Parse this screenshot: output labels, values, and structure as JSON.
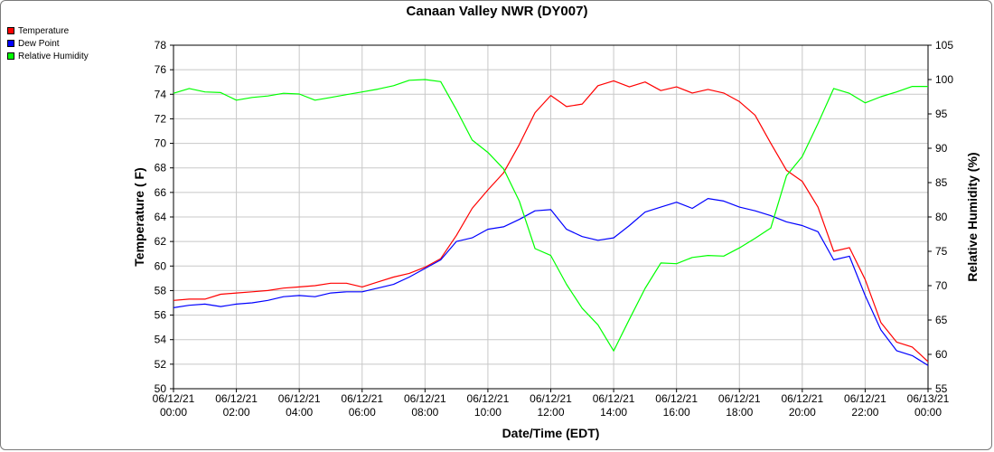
{
  "chart_data": {
    "type": "line",
    "title": "Canaan Valley NWR (DY007)",
    "xlabel": "Date/Time (EDT)",
    "ylabel": "Temperature ( F)",
    "y2label": "Relative Humidity (%)",
    "ylim": [
      50,
      78
    ],
    "y2lim": [
      55,
      105
    ],
    "xlim": [
      "06/12/21 00:00",
      "06/13/21 00:00"
    ],
    "yticks": [
      "50",
      "52",
      "54",
      "56",
      "58",
      "60",
      "62",
      "64",
      "66",
      "68",
      "70",
      "72",
      "74",
      "76",
      "78"
    ],
    "y2ticks": [
      "55",
      "60",
      "65",
      "70",
      "75",
      "80",
      "85",
      "90",
      "95",
      "100",
      "105"
    ],
    "xticks": [
      {
        "date": "06/12/21",
        "time": "00:00"
      },
      {
        "date": "06/12/21",
        "time": "02:00"
      },
      {
        "date": "06/12/21",
        "time": "04:00"
      },
      {
        "date": "06/12/21",
        "time": "06:00"
      },
      {
        "date": "06/12/21",
        "time": "08:00"
      },
      {
        "date": "06/12/21",
        "time": "10:00"
      },
      {
        "date": "06/12/21",
        "time": "12:00"
      },
      {
        "date": "06/12/21",
        "time": "14:00"
      },
      {
        "date": "06/12/21",
        "time": "16:00"
      },
      {
        "date": "06/12/21",
        "time": "18:00"
      },
      {
        "date": "06/12/21",
        "time": "20:00"
      },
      {
        "date": "06/12/21",
        "time": "22:00"
      },
      {
        "date": "06/13/21",
        "time": "00:00"
      }
    ],
    "grid": true,
    "legend_position": "top-left",
    "series": [
      {
        "name": "Temperature",
        "color": "#ff0000",
        "axis": "left",
        "x": [
          "06/12/21 00:00",
          "06/12/21 00:30",
          "06/12/21 01:00",
          "06/12/21 01:30",
          "06/12/21 02:00",
          "06/12/21 02:30",
          "06/12/21 03:00",
          "06/12/21 03:30",
          "06/12/21 04:00",
          "06/12/21 04:30",
          "06/12/21 05:00",
          "06/12/21 05:30",
          "06/12/21 06:00",
          "06/12/21 06:30",
          "06/12/21 07:00",
          "06/12/21 07:30",
          "06/12/21 08:00",
          "06/12/21 08:30",
          "06/12/21 09:00",
          "06/12/21 09:30",
          "06/12/21 10:00",
          "06/12/21 10:30",
          "06/12/21 11:00",
          "06/12/21 11:30",
          "06/12/21 12:00",
          "06/12/21 12:30",
          "06/12/21 13:00",
          "06/12/21 13:30",
          "06/12/21 14:00",
          "06/12/21 14:30",
          "06/12/21 15:00",
          "06/12/21 15:30",
          "06/12/21 16:00",
          "06/12/21 16:30",
          "06/12/21 17:00",
          "06/12/21 17:30",
          "06/12/21 18:00",
          "06/12/21 18:30",
          "06/12/21 19:00",
          "06/12/21 19:30",
          "06/12/21 20:00",
          "06/12/21 20:30",
          "06/12/21 21:00",
          "06/12/21 21:30",
          "06/12/21 22:00",
          "06/12/21 22:30",
          "06/12/21 23:00",
          "06/12/21 23:30",
          "06/13/21 00:00"
        ],
        "values": [
          57.2,
          57.3,
          57.3,
          57.7,
          57.8,
          57.9,
          58.0,
          58.2,
          58.3,
          58.4,
          58.6,
          58.6,
          58.3,
          58.7,
          59.1,
          59.4,
          59.9,
          60.6,
          62.5,
          64.7,
          66.2,
          67.6,
          69.9,
          72.5,
          73.9,
          73.0,
          73.2,
          74.7,
          75.1,
          74.6,
          75.0,
          74.3,
          74.6,
          74.1,
          74.4,
          74.1,
          73.4,
          72.3,
          70.0,
          67.8,
          66.9,
          64.8,
          61.2,
          61.5,
          58.9,
          55.4,
          53.8,
          53.4,
          52.2
        ]
      },
      {
        "name": "Dew Point",
        "color": "#0000ff",
        "axis": "left",
        "x": [
          "06/12/21 00:00",
          "06/12/21 00:30",
          "06/12/21 01:00",
          "06/12/21 01:30",
          "06/12/21 02:00",
          "06/12/21 02:30",
          "06/12/21 03:00",
          "06/12/21 03:30",
          "06/12/21 04:00",
          "06/12/21 04:30",
          "06/12/21 05:00",
          "06/12/21 05:30",
          "06/12/21 06:00",
          "06/12/21 06:30",
          "06/12/21 07:00",
          "06/12/21 07:30",
          "06/12/21 08:00",
          "06/12/21 08:30",
          "06/12/21 09:00",
          "06/12/21 09:30",
          "06/12/21 10:00",
          "06/12/21 10:30",
          "06/12/21 11:00",
          "06/12/21 11:30",
          "06/12/21 12:00",
          "06/12/21 12:30",
          "06/12/21 13:00",
          "06/12/21 13:30",
          "06/12/21 14:00",
          "06/12/21 14:30",
          "06/12/21 15:00",
          "06/12/21 15:30",
          "06/12/21 16:00",
          "06/12/21 16:30",
          "06/12/21 17:00",
          "06/12/21 17:30",
          "06/12/21 18:00",
          "06/12/21 18:30",
          "06/12/21 19:00",
          "06/12/21 19:30",
          "06/12/21 20:00",
          "06/12/21 20:30",
          "06/12/21 21:00",
          "06/12/21 21:30",
          "06/12/21 22:00",
          "06/12/21 22:30",
          "06/12/21 23:00",
          "06/12/21 23:30",
          "06/13/21 00:00"
        ],
        "values": [
          56.6,
          56.8,
          56.9,
          56.7,
          56.9,
          57.0,
          57.2,
          57.5,
          57.6,
          57.5,
          57.8,
          57.9,
          57.9,
          58.2,
          58.5,
          59.1,
          59.8,
          60.5,
          62.0,
          62.3,
          63.0,
          63.2,
          63.8,
          64.5,
          64.6,
          63.0,
          62.4,
          62.1,
          62.3,
          63.3,
          64.4,
          64.8,
          65.2,
          64.7,
          65.5,
          65.3,
          64.8,
          64.5,
          64.1,
          63.6,
          63.3,
          62.8,
          60.5,
          60.8,
          57.6,
          54.8,
          53.1,
          52.7,
          51.9
        ]
      },
      {
        "name": "Relative Humidity",
        "color": "#00ff00",
        "axis": "right",
        "x": [
          "06/12/21 00:00",
          "06/12/21 00:30",
          "06/12/21 01:00",
          "06/12/21 01:30",
          "06/12/21 02:00",
          "06/12/21 02:30",
          "06/12/21 03:00",
          "06/12/21 03:30",
          "06/12/21 04:00",
          "06/12/21 04:30",
          "06/12/21 05:00",
          "06/12/21 05:30",
          "06/12/21 06:00",
          "06/12/21 06:30",
          "06/12/21 07:00",
          "06/12/21 07:30",
          "06/12/21 08:00",
          "06/12/21 08:30",
          "06/12/21 09:00",
          "06/12/21 09:30",
          "06/12/21 10:00",
          "06/12/21 10:30",
          "06/12/21 11:00",
          "06/12/21 11:30",
          "06/12/21 12:00",
          "06/12/21 12:30",
          "06/12/21 13:00",
          "06/12/21 13:30",
          "06/12/21 14:00",
          "06/12/21 14:30",
          "06/12/21 15:00",
          "06/12/21 15:30",
          "06/12/21 16:00",
          "06/12/21 16:30",
          "06/12/21 17:00",
          "06/12/21 17:30",
          "06/12/21 18:00",
          "06/12/21 18:30",
          "06/12/21 19:00",
          "06/12/21 19:30",
          "06/12/21 20:00",
          "06/12/21 20:30",
          "06/12/21 21:00",
          "06/12/21 21:30",
          "06/12/21 22:00",
          "06/12/21 22:30",
          "06/12/21 23:00",
          "06/12/21 23:30",
          "06/13/21 00:00"
        ],
        "values": [
          98.0,
          98.7,
          98.2,
          98.1,
          97.0,
          97.4,
          97.6,
          98.0,
          97.9,
          97.0,
          97.4,
          97.8,
          98.2,
          98.6,
          99.1,
          99.9,
          100.0,
          99.7,
          95.6,
          91.2,
          89.4,
          87.0,
          82.3,
          75.4,
          74.4,
          70.2,
          66.7,
          64.3,
          60.5,
          65.1,
          69.6,
          73.3,
          73.2,
          74.1,
          74.4,
          74.3,
          75.5,
          76.9,
          78.4,
          86.0,
          88.8,
          93.6,
          98.7,
          98.0,
          96.6,
          97.5,
          98.2,
          99.0,
          99.0
        ]
      }
    ]
  }
}
